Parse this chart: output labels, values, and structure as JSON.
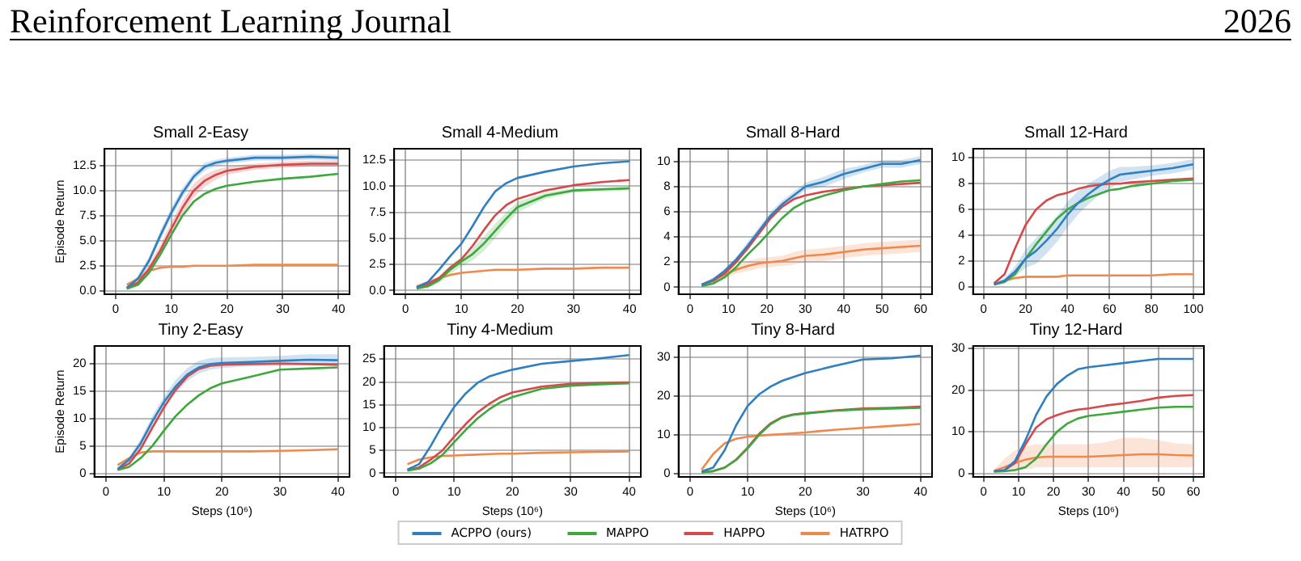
{
  "chart_data": [
    {
      "type": "line",
      "title": "Small 2-Easy",
      "ylabel": "Episode Return",
      "annotations": [
        "Reinforcement Learning Journal",
        "2026"
      ],
      "legend": "bottom",
      "grid": true,
      "marker": "none",
      "tick_labels": "xy",
      "x": [
        2,
        4,
        6,
        8,
        10,
        12,
        14,
        16,
        18,
        20,
        25,
        30,
        35,
        40
      ],
      "xlim": [
        -2,
        42
      ],
      "xticks": [
        0,
        10,
        20,
        30,
        40
      ],
      "ylim": [
        -0.35,
        14.2
      ],
      "yticks": [
        {
          "value": 0,
          "label": "0.0"
        },
        2.5,
        {
          "value": 5,
          "label": "5.0"
        },
        7.5,
        {
          "value": 10,
          "label": "10.0"
        },
        12.5
      ],
      "series": [
        {
          "name": "ACPPO (ours)",
          "color": "#2f7fc1",
          "values": [
            0.3,
            1.2,
            3.0,
            5.5,
            7.8,
            9.8,
            11.4,
            12.4,
            12.8,
            13.0,
            13.3,
            13.3,
            13.4,
            13.3
          ],
          "lower": [
            0.2,
            0.9,
            2.6,
            5.0,
            7.3,
            9.3,
            11.0,
            12.0,
            12.5,
            12.7,
            13.0,
            13.0,
            13.1,
            13.0
          ],
          "upper": [
            0.4,
            1.5,
            3.4,
            6.0,
            8.3,
            10.3,
            11.8,
            12.8,
            13.1,
            13.3,
            13.6,
            13.6,
            13.7,
            13.6
          ]
        },
        {
          "name": "MAPPO",
          "color": "#3ea83e",
          "values": [
            0.2,
            0.6,
            1.8,
            3.6,
            5.6,
            7.5,
            8.9,
            9.7,
            10.2,
            10.5,
            10.9,
            11.2,
            11.4,
            11.7
          ]
        },
        {
          "name": "HAPPO",
          "color": "#d6484a",
          "values": [
            0.3,
            0.8,
            2.2,
            4.0,
            6.2,
            8.3,
            10.0,
            11.0,
            11.6,
            12.0,
            12.4,
            12.6,
            12.7,
            12.7
          ],
          "lower": [
            0.2,
            0.6,
            1.8,
            3.4,
            5.5,
            7.6,
            9.3,
            10.4,
            11.1,
            11.6,
            12.1,
            12.3,
            12.4,
            12.4
          ],
          "upper": [
            0.4,
            1.0,
            2.6,
            4.6,
            6.9,
            9.0,
            10.7,
            11.6,
            12.1,
            12.4,
            12.7,
            12.9,
            13.0,
            13.0
          ]
        },
        {
          "name": "HATRPO",
          "color": "#f0884c",
          "values": [
            0.6,
            1.2,
            2.0,
            2.3,
            2.4,
            2.4,
            2.5,
            2.5,
            2.5,
            2.5,
            2.6,
            2.6,
            2.6,
            2.6
          ]
        }
      ]
    },
    {
      "type": "line",
      "title": "Small 4-Medium",
      "legend": false,
      "grid": true,
      "marker": "none",
      "tick_labels": "xy",
      "x": [
        2,
        4,
        6,
        8,
        10,
        12,
        14,
        16,
        18,
        20,
        25,
        30,
        35,
        40
      ],
      "xlim": [
        -2,
        42
      ],
      "xticks": [
        0,
        10,
        20,
        30,
        40
      ],
      "ylim": [
        -0.35,
        13.6
      ],
      "yticks": [
        {
          "value": 0,
          "label": "0.0"
        },
        2.5,
        {
          "value": 5,
          "label": "5.0"
        },
        7.5,
        {
          "value": 10,
          "label": "10.0"
        },
        12.5
      ],
      "series": [
        {
          "color": "#2f7fc1",
          "values": [
            0.3,
            0.8,
            2.0,
            3.3,
            4.5,
            6.2,
            8.0,
            9.5,
            10.3,
            10.8,
            11.4,
            11.9,
            12.2,
            12.4
          ]
        },
        {
          "color": "#3ea83e",
          "values": [
            0.2,
            0.4,
            1.0,
            2.0,
            2.8,
            3.5,
            4.5,
            5.7,
            6.9,
            8.0,
            9.1,
            9.6,
            9.7,
            9.8
          ],
          "lower": [
            0.1,
            0.3,
            0.7,
            1.6,
            2.3,
            2.9,
            3.8,
            5.0,
            6.3,
            7.5,
            8.8,
            9.4,
            9.5,
            9.6
          ],
          "upper": [
            0.3,
            0.6,
            1.3,
            2.4,
            3.3,
            4.1,
            5.2,
            6.4,
            7.5,
            8.5,
            9.4,
            9.8,
            9.9,
            10.0
          ]
        },
        {
          "color": "#d6484a",
          "values": [
            0.3,
            0.6,
            1.2,
            2.2,
            3.0,
            4.3,
            5.8,
            7.2,
            8.2,
            8.8,
            9.6,
            10.1,
            10.4,
            10.6
          ]
        },
        {
          "color": "#f0884c",
          "values": [
            0.4,
            0.8,
            1.2,
            1.5,
            1.7,
            1.8,
            1.9,
            2.0,
            2.0,
            2.0,
            2.1,
            2.1,
            2.2,
            2.2
          ]
        }
      ]
    },
    {
      "type": "line",
      "title": "Small 8-Hard",
      "legend": false,
      "grid": true,
      "marker": "none",
      "tick_labels": "xy",
      "x": [
        3,
        6,
        9,
        12,
        15,
        18,
        21,
        24,
        27,
        30,
        35,
        40,
        45,
        50,
        55,
        60
      ],
      "xlim": [
        -3,
        63
      ],
      "xticks": [
        0,
        10,
        20,
        30,
        40,
        50,
        60
      ],
      "ylim": [
        -0.55,
        11
      ],
      "yticks": [
        0,
        2,
        4,
        6,
        8,
        10
      ],
      "series": [
        {
          "color": "#2f7fc1",
          "values": [
            0.2,
            0.6,
            1.3,
            2.2,
            3.3,
            4.5,
            5.7,
            6.6,
            7.3,
            8.0,
            8.4,
            9.0,
            9.4,
            9.8,
            9.8,
            10.1
          ],
          "lower": [
            0.1,
            0.5,
            1.1,
            2.0,
            3.0,
            4.2,
            5.4,
            6.3,
            7.0,
            7.7,
            8.0,
            8.6,
            9.1,
            9.5,
            9.5,
            9.8
          ],
          "upper": [
            0.3,
            0.7,
            1.5,
            2.4,
            3.6,
            4.8,
            6.0,
            6.9,
            7.6,
            8.3,
            8.8,
            9.4,
            9.7,
            10.1,
            10.1,
            10.4
          ]
        },
        {
          "color": "#3ea83e",
          "values": [
            0.1,
            0.3,
            0.8,
            1.6,
            2.6,
            3.5,
            4.5,
            5.5,
            6.3,
            6.8,
            7.3,
            7.7,
            8.0,
            8.2,
            8.4,
            8.5
          ]
        },
        {
          "color": "#d6484a",
          "values": [
            0.2,
            0.5,
            1.1,
            2.0,
            3.1,
            4.3,
            5.5,
            6.4,
            7.0,
            7.3,
            7.6,
            7.8,
            8.0,
            8.1,
            8.2,
            8.3
          ]
        },
        {
          "color": "#f0884c",
          "values": [
            0.2,
            0.6,
            1.0,
            1.4,
            1.7,
            1.9,
            2.0,
            2.1,
            2.3,
            2.5,
            2.6,
            2.8,
            3.0,
            3.1,
            3.2,
            3.3
          ],
          "lower": [
            0.1,
            0.4,
            0.7,
            1.1,
            1.3,
            1.5,
            1.6,
            1.7,
            1.8,
            2.0,
            2.1,
            2.3,
            2.5,
            2.6,
            2.7,
            2.8
          ],
          "upper": [
            0.3,
            0.8,
            1.3,
            1.7,
            2.1,
            2.3,
            2.4,
            2.5,
            2.8,
            3.0,
            3.1,
            3.3,
            3.5,
            3.6,
            3.7,
            3.8
          ]
        }
      ]
    },
    {
      "type": "line",
      "title": "Small 12-Hard",
      "legend": false,
      "grid": true,
      "marker": "none",
      "tick_labels": "xy",
      "x": [
        5,
        10,
        15,
        20,
        25,
        30,
        35,
        40,
        45,
        50,
        55,
        60,
        65,
        70,
        80,
        90,
        100
      ],
      "xlim": [
        -5,
        105
      ],
      "xticks": [
        0,
        20,
        40,
        60,
        80,
        100
      ],
      "ylim": [
        -0.55,
        10.7
      ],
      "yticks": [
        0,
        2,
        4,
        6,
        8,
        10
      ],
      "series": [
        {
          "color": "#2f7fc1",
          "values": [
            0.2,
            0.5,
            1.2,
            2.2,
            2.8,
            3.6,
            4.5,
            5.6,
            6.5,
            7.2,
            7.8,
            8.3,
            8.7,
            8.8,
            9.0,
            9.2,
            9.5
          ],
          "lower": [
            0.1,
            0.3,
            0.8,
            1.5,
            1.8,
            2.6,
            3.5,
            4.6,
            5.6,
            6.4,
            7.1,
            7.6,
            8.1,
            8.3,
            8.6,
            8.8,
            9.1
          ],
          "upper": [
            0.3,
            0.7,
            1.6,
            2.9,
            3.8,
            4.6,
            5.5,
            6.6,
            7.4,
            8.0,
            8.5,
            9.0,
            9.3,
            9.3,
            9.4,
            9.6,
            9.9
          ]
        },
        {
          "color": "#3ea83e",
          "values": [
            0.2,
            0.4,
            1.0,
            2.2,
            3.3,
            4.3,
            5.3,
            6.0,
            6.5,
            6.9,
            7.2,
            7.5,
            7.6,
            7.8,
            8.0,
            8.2,
            8.3
          ]
        },
        {
          "color": "#d6484a",
          "values": [
            0.3,
            1.0,
            3.0,
            4.8,
            6.0,
            6.7,
            7.1,
            7.3,
            7.6,
            7.8,
            7.9,
            8.0,
            8.0,
            8.1,
            8.2,
            8.3,
            8.4
          ]
        },
        {
          "color": "#f0884c",
          "values": [
            0.2,
            0.5,
            0.7,
            0.8,
            0.8,
            0.8,
            0.8,
            0.9,
            0.9,
            0.9,
            0.9,
            0.9,
            0.9,
            0.9,
            0.9,
            1.0,
            1.0
          ]
        }
      ]
    },
    {
      "type": "line",
      "title": "Tiny 2-Easy",
      "xlabel": "Steps (10⁶)",
      "ylabel": "Episode Return",
      "legend": false,
      "grid": true,
      "marker": "none",
      "x": [
        2,
        4,
        6,
        8,
        10,
        12,
        14,
        16,
        18,
        20,
        25,
        30,
        35,
        40
      ],
      "xlim": [
        -2,
        42
      ],
      "xticks": [
        0,
        10,
        20,
        30,
        40
      ],
      "ylim": [
        -0.65,
        23.2
      ],
      "yticks": [
        0,
        5,
        10,
        15,
        20
      ],
      "series": [
        {
          "color": "#2f7fc1",
          "values": [
            0.8,
            2.5,
            5.5,
            9.5,
            13.0,
            15.8,
            18.0,
            19.3,
            19.9,
            20.1,
            20.3,
            20.5,
            20.7,
            20.6
          ],
          "lower": [
            0.6,
            2.0,
            4.7,
            8.5,
            12.0,
            14.6,
            16.8,
            18.2,
            18.9,
            19.2,
            19.5,
            19.6,
            19.7,
            19.6
          ],
          "upper": [
            1.0,
            3.0,
            6.3,
            10.5,
            14.0,
            17.0,
            19.2,
            20.5,
            21.0,
            21.1,
            21.2,
            21.4,
            21.7,
            21.7
          ]
        },
        {
          "color": "#3ea83e",
          "values": [
            0.6,
            1.2,
            2.8,
            5.0,
            7.8,
            10.4,
            12.5,
            14.2,
            15.5,
            16.4,
            17.6,
            18.9,
            19.1,
            19.3
          ]
        },
        {
          "color": "#d6484a",
          "values": [
            0.7,
            1.8,
            4.5,
            8.3,
            12.0,
            15.2,
            17.6,
            19.0,
            19.6,
            19.8,
            19.9,
            20.0,
            19.9,
            19.8
          ]
        },
        {
          "color": "#f0884c",
          "values": [
            1.5,
            2.8,
            3.8,
            4.0,
            4.0,
            4.0,
            4.0,
            4.0,
            4.0,
            4.0,
            4.0,
            4.1,
            4.2,
            4.4
          ]
        }
      ]
    },
    {
      "type": "line",
      "title": "Tiny 4-Medium",
      "xlabel": "Steps (10⁶)",
      "legend": false,
      "grid": true,
      "marker": "none",
      "x": [
        2,
        4,
        6,
        8,
        10,
        12,
        14,
        16,
        18,
        20,
        25,
        30,
        35,
        40
      ],
      "xlim": [
        -2,
        42
      ],
      "xticks": [
        0,
        10,
        20,
        30,
        40
      ],
      "ylim": [
        -0.8,
        27.9
      ],
      "yticks": [
        0,
        5,
        10,
        15,
        20,
        25
      ],
      "series": [
        {
          "color": "#2f7fc1",
          "values": [
            0.8,
            2.0,
            6.0,
            10.5,
            14.5,
            17.5,
            19.8,
            21.2,
            22.0,
            22.7,
            24.0,
            24.6,
            25.2,
            25.9
          ]
        },
        {
          "color": "#3ea83e",
          "values": [
            0.6,
            1.0,
            2.2,
            4.0,
            6.8,
            9.5,
            12.0,
            14.0,
            15.6,
            16.7,
            18.5,
            19.2,
            19.5,
            19.7
          ]
        },
        {
          "color": "#d6484a",
          "values": [
            0.7,
            1.3,
            3.0,
            5.0,
            8.0,
            10.8,
            13.3,
            15.2,
            16.7,
            17.7,
            19.0,
            19.6,
            19.8,
            19.9
          ]
        },
        {
          "color": "#f0884c",
          "values": [
            2.0,
            3.0,
            3.5,
            3.8,
            3.9,
            4.0,
            4.1,
            4.2,
            4.3,
            4.3,
            4.5,
            4.6,
            4.7,
            4.8
          ]
        }
      ]
    },
    {
      "type": "line",
      "title": "Tiny 8-Hard",
      "xlabel": "Steps (10⁶)",
      "legend": false,
      "grid": true,
      "marker": "none",
      "x": [
        2,
        4,
        6,
        8,
        10,
        12,
        14,
        16,
        18,
        20,
        25,
        30,
        35,
        40
      ],
      "xlim": [
        -2,
        42
      ],
      "xticks": [
        0,
        10,
        20,
        30,
        40
      ],
      "ylim": [
        -0.9,
        33
      ],
      "yticks": [
        0,
        10,
        20,
        30
      ],
      "series": [
        {
          "color": "#2f7fc1",
          "values": [
            0.5,
            1.5,
            6.0,
            12.5,
            17.5,
            20.5,
            22.5,
            24.0,
            25.0,
            26.0,
            27.8,
            29.5,
            29.8,
            30.5
          ]
        },
        {
          "color": "#3ea83e",
          "values": [
            0.3,
            0.6,
            1.5,
            3.5,
            6.5,
            10.0,
            12.8,
            14.5,
            15.2,
            15.5,
            16.2,
            16.6,
            16.8,
            17.0
          ]
        },
        {
          "color": "#d6484a",
          "values": [
            0.3,
            0.6,
            1.5,
            3.6,
            6.7,
            10.3,
            13.0,
            14.6,
            15.3,
            15.6,
            16.3,
            16.8,
            17.0,
            17.3
          ]
        },
        {
          "color": "#f0884c",
          "values": [
            1.0,
            5.0,
            7.8,
            9.0,
            9.5,
            9.8,
            10.0,
            10.2,
            10.4,
            10.6,
            11.3,
            11.8,
            12.3,
            12.8
          ]
        }
      ]
    },
    {
      "type": "line",
      "title": "Tiny 12-Hard",
      "xlabel": "Steps (10⁶)",
      "legend": false,
      "grid": true,
      "marker": "none",
      "x": [
        3,
        6,
        9,
        12,
        15,
        18,
        21,
        24,
        27,
        30,
        35,
        40,
        45,
        50,
        55,
        60
      ],
      "xlim": [
        -3,
        63
      ],
      "xticks": [
        0,
        10,
        20,
        30,
        40,
        50,
        60
      ],
      "ylim": [
        -0.85,
        30.6
      ],
      "yticks": [
        0,
        10,
        20,
        30
      ],
      "series": [
        {
          "color": "#2f7fc1",
          "values": [
            0.5,
            0.8,
            3.0,
            8.0,
            14.0,
            18.5,
            21.5,
            23.5,
            25.0,
            25.5,
            26.0,
            26.5,
            27.0,
            27.5,
            27.5,
            27.5
          ]
        },
        {
          "color": "#3ea83e",
          "values": [
            0.4,
            0.5,
            0.8,
            1.5,
            3.5,
            7.0,
            10.0,
            12.0,
            13.2,
            13.8,
            14.3,
            14.8,
            15.3,
            15.8,
            16.0,
            16.0
          ]
        },
        {
          "color": "#d6484a",
          "values": [
            0.5,
            0.7,
            2.5,
            7.0,
            11.0,
            13.0,
            14.0,
            14.8,
            15.3,
            15.6,
            16.3,
            16.8,
            17.4,
            18.2,
            18.6,
            18.8
          ]
        },
        {
          "color": "#f0884c",
          "values": [
            0.6,
            1.5,
            2.5,
            3.3,
            3.8,
            4.0,
            4.0,
            4.0,
            4.0,
            4.0,
            4.2,
            4.4,
            4.6,
            4.6,
            4.4,
            4.3
          ],
          "lower": [
            0.2,
            0.5,
            0.8,
            1.0,
            1.5,
            1.5,
            1.5,
            1.5,
            1.5,
            1.5,
            1.5,
            1.5,
            1.5,
            1.5,
            1.5,
            1.5
          ],
          "upper": [
            1.0,
            3.5,
            5.5,
            6.5,
            7.0,
            7.0,
            7.0,
            7.0,
            7.0,
            7.0,
            7.5,
            8.5,
            8.5,
            8.0,
            7.2,
            7.0
          ]
        }
      ]
    }
  ]
}
